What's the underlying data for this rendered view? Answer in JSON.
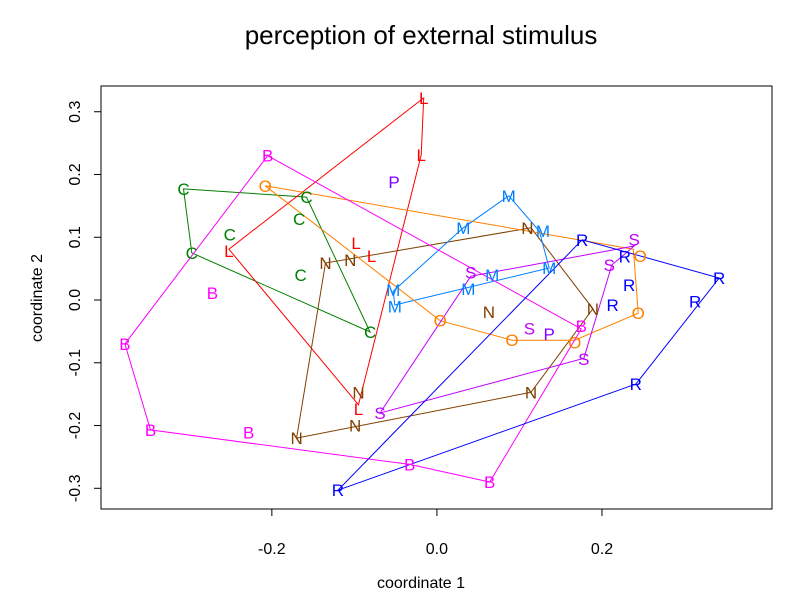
{
  "chart_data": {
    "type": "scatter",
    "title": "perception of external stimulus",
    "xlabel": "coordinate 1",
    "ylabel": "coordinate 2",
    "xlim": [
      -0.407,
      0.406
    ],
    "ylim": [
      -0.333,
      0.341
    ],
    "xticks": [
      -0.2,
      0.0,
      0.2
    ],
    "xtick_labels": [
      "-0.2",
      "0.0",
      "0.2"
    ],
    "yticks": [
      -0.3,
      -0.2,
      -0.1,
      0.0,
      0.1,
      0.2,
      0.3
    ],
    "ytick_labels": [
      "-0.3",
      "-0.2",
      "-0.1",
      "0.0",
      "0.1",
      "0.2",
      "0.3"
    ],
    "grid": false,
    "series": [
      {
        "label": "C",
        "color": "#008000",
        "x": [
          -0.307,
          -0.158,
          -0.167,
          -0.251,
          -0.297,
          -0.165,
          -0.081
        ],
        "y": [
          0.177,
          0.164,
          0.129,
          0.102,
          0.075,
          0.04,
          -0.051
        ],
        "hull": [
          0,
          1,
          6,
          4
        ]
      },
      {
        "label": "L",
        "color": "#FF0000",
        "x": [
          -0.016,
          -0.019,
          -0.096,
          -0.081,
          -0.252,
          -0.095
        ],
        "y": [
          0.322,
          0.231,
          0.091,
          0.07,
          0.081,
          -0.167
        ],
        "hull": [
          0,
          1,
          5,
          4
        ]
      },
      {
        "label": "N",
        "color": "#804000",
        "x": [
          -0.135,
          -0.105,
          0.114,
          0.189,
          0.063,
          0.114,
          -0.099,
          -0.17,
          -0.095
        ],
        "y": [
          0.059,
          0.064,
          0.115,
          -0.014,
          -0.019,
          -0.147,
          -0.191,
          -0.22,
          -0.164
        ],
        "hull": [
          7,
          0,
          2,
          3,
          5
        ]
      },
      {
        "label": "M",
        "color": "#0080FF",
        "x": [
          0.087,
          0.032,
          0.124,
          -0.053,
          -0.051,
          0.067,
          0.038,
          0.136
        ],
        "y": [
          0.166,
          0.115,
          0.11,
          0.014,
          -0.008,
          0.04,
          0.024,
          0.051
        ],
        "hull": [
          0,
          2,
          7,
          4,
          3,
          1
        ]
      },
      {
        "label": "O",
        "color": "#FF8000",
        "x": [
          -0.208,
          0.238,
          0.244,
          0.167,
          0.091,
          0.004
        ],
        "y": [
          0.182,
          0.081,
          -0.021,
          -0.064,
          -0.064,
          -0.033
        ],
        "hull": [
          0,
          1,
          2,
          3,
          4,
          5
        ]
      },
      {
        "label": "B",
        "color": "#FF00FF",
        "x": [
          -0.205,
          -0.272,
          -0.378,
          -0.347,
          -0.228,
          -0.033,
          0.064,
          0.175
        ],
        "y": [
          0.23,
          0.011,
          -0.07,
          -0.207,
          -0.211,
          -0.262,
          -0.29,
          -0.046
        ],
        "hull": [
          0,
          7,
          6,
          5,
          3,
          2
        ]
      },
      {
        "label": "S",
        "color": "#C000FF",
        "x": [
          0.041,
          0.112,
          0.178,
          -0.069,
          0.212,
          0.239
        ],
        "y": [
          0.038,
          -0.045,
          -0.093,
          -0.18,
          0.056,
          0.086
        ],
        "hull": [
          0,
          5,
          4,
          2,
          3
        ]
      },
      {
        "label": "P",
        "color": "#8000FF",
        "x": [
          -0.052,
          0.136
        ],
        "y": [
          0.188,
          -0.054
        ],
        "hull": []
      },
      {
        "label": "R",
        "color": "#0000FF",
        "x": [
          0.176,
          0.233,
          0.233,
          0.213,
          0.313,
          0.342,
          0.241,
          -0.12
        ],
        "y": [
          0.096,
          0.069,
          0.024,
          -0.008,
          -0.002,
          0.035,
          -0.134,
          -0.303
        ],
        "hull": [
          0,
          5,
          6,
          7
        ]
      }
    ]
  }
}
